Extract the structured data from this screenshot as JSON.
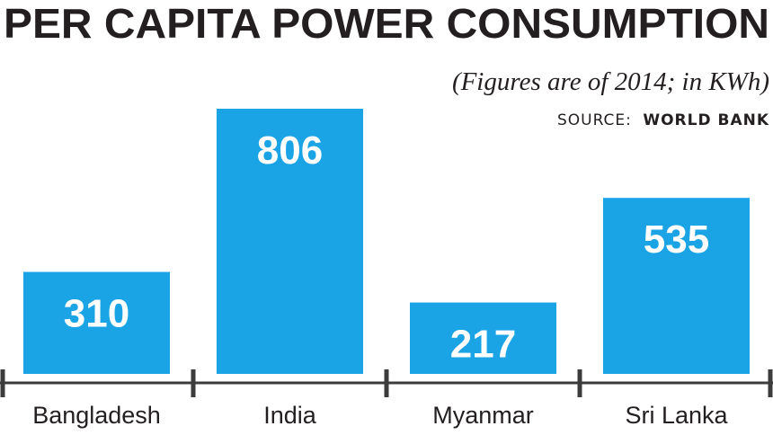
{
  "chart_data": {
    "type": "bar",
    "title": "PER CAPITA POWER CONSUMPTION",
    "subtitle": "(Figures are of 2014; in KWh)",
    "source_label": "SOURCE:",
    "source_value": "WORLD BANK",
    "categories": [
      "Bangladesh",
      "India",
      "Myanmar",
      "Sri Lanka"
    ],
    "values": [
      310,
      806,
      217,
      535
    ],
    "data_labels": [
      "310",
      "806",
      "217",
      "535"
    ],
    "bar_color": "#1aa3e5",
    "axis_color": "#3c3c3c",
    "text_color": "#231f20"
  }
}
